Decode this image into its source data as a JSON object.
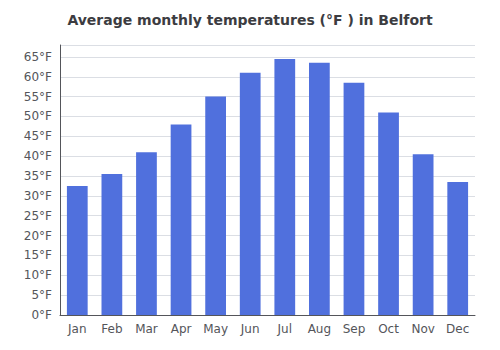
{
  "chart_data": {
    "type": "bar",
    "title": "Average monthly temperatures (°F ) in Belfort",
    "categories": [
      "Jan",
      "Feb",
      "Mar",
      "Apr",
      "May",
      "Jun",
      "Jul",
      "Aug",
      "Sep",
      "Oct",
      "Nov",
      "Dec"
    ],
    "values": [
      32.5,
      35.5,
      41.0,
      48.0,
      55.0,
      61.0,
      64.5,
      63.5,
      58.5,
      51.0,
      40.5,
      33.5
    ],
    "ylim": [
      0,
      68
    ],
    "yticks": [
      {
        "value": 0,
        "label": "0°F"
      },
      {
        "value": 5,
        "label": "5°F"
      },
      {
        "value": 10,
        "label": "10°F"
      },
      {
        "value": 15,
        "label": "15°F"
      },
      {
        "value": 20,
        "label": "20°F"
      },
      {
        "value": 25,
        "label": "25°F"
      },
      {
        "value": 30,
        "label": "30°F"
      },
      {
        "value": 35,
        "label": "35°F"
      },
      {
        "value": 40,
        "label": "40°F"
      },
      {
        "value": 45,
        "label": "45°F"
      },
      {
        "value": 50,
        "label": "50°F"
      },
      {
        "value": 55,
        "label": "55°F"
      },
      {
        "value": 60,
        "label": "60°F"
      },
      {
        "value": 65,
        "label": "65°F"
      }
    ],
    "grid": true
  }
}
